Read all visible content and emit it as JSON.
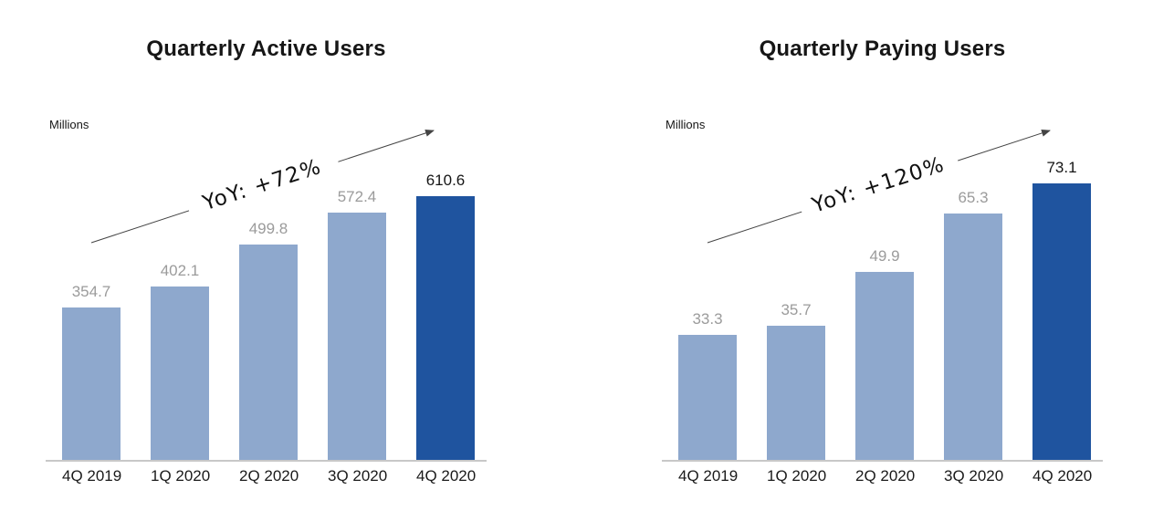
{
  "page": {
    "background": "#ffffff"
  },
  "palette": {
    "bar": "#8EA8CD",
    "bar_highlight": "#1F549F",
    "value_label": "#9B9B9B",
    "value_label_highlight": "#151515",
    "axis_line": "#C8C8C8",
    "arrow": "#444444",
    "title_text": "#161616"
  },
  "chart_data": [
    {
      "type": "bar",
      "title": "Quarterly Active Users",
      "ylabel": "Millions",
      "xlabel": "",
      "annotation": "YoY: +72%",
      "categories": [
        "4Q 2019",
        "1Q 2020",
        "2Q 2020",
        "3Q 2020",
        "4Q 2020"
      ],
      "values": [
        354.7,
        402.1,
        499.8,
        572.4,
        610.6
      ],
      "value_labels": [
        "354.7",
        "402.1",
        "499.8",
        "572.4",
        "610.6"
      ],
      "highlight_index": 4,
      "ylim": [
        0,
        645
      ],
      "grid": false,
      "legend": false
    },
    {
      "type": "bar",
      "title": "Quarterly Paying Users",
      "ylabel": "Millions",
      "xlabel": "",
      "annotation": "YoY: +120%",
      "categories": [
        "4Q 2019",
        "1Q 2020",
        "2Q 2020",
        "3Q 2020",
        "4Q 2020"
      ],
      "values": [
        33.3,
        35.7,
        49.9,
        65.3,
        73.1
      ],
      "value_labels": [
        "33.3",
        "35.7",
        "49.9",
        "65.3",
        "73.1"
      ],
      "highlight_index": 4,
      "ylim": [
        0,
        73.6
      ],
      "grid": false,
      "legend": false
    }
  ]
}
